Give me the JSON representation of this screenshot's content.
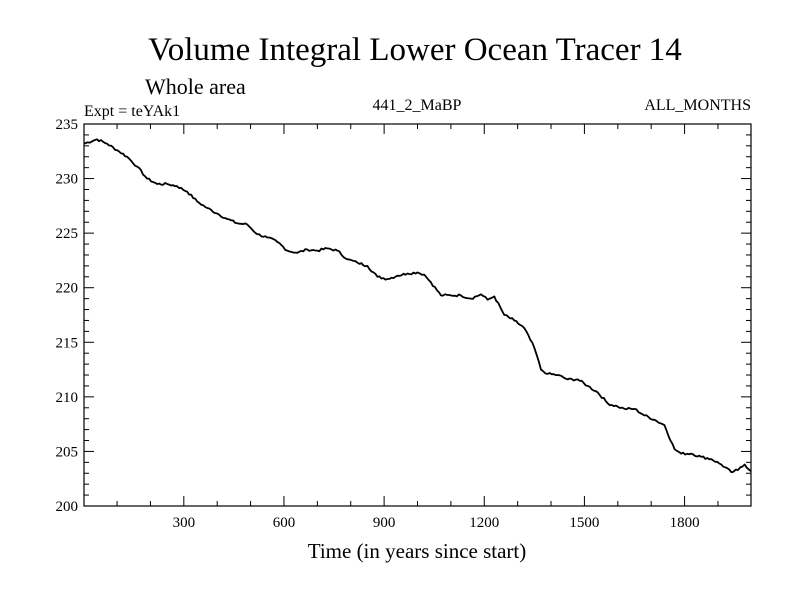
{
  "chart_data": {
    "type": "line",
    "title": "Volume Integral Lower Ocean Tracer 14",
    "subtitle": "Whole area",
    "expt_label": "Expt = teYAk1",
    "center_label": "441_2_MaBP",
    "right_label": "ALL_MONTHS",
    "xlabel": "Time (in years since start)",
    "ylabel": "",
    "xlim": [
      1,
      1999
    ],
    "ylim": [
      200,
      235
    ],
    "x_ticks": [
      300,
      600,
      900,
      1200,
      1500,
      1800
    ],
    "y_ticks": [
      200,
      205,
      210,
      215,
      220,
      225,
      230,
      235
    ],
    "series": [
      {
        "name": "Tracer 14",
        "x": [
          1,
          40,
          70,
          100,
          130,
          160,
          190,
          220,
          250,
          280,
          310,
          340,
          370,
          400,
          430,
          460,
          490,
          520,
          550,
          580,
          610,
          640,
          670,
          700,
          730,
          760,
          790,
          820,
          850,
          880,
          910,
          940,
          970,
          1000,
          1020,
          1040,
          1070,
          1100,
          1130,
          1160,
          1190,
          1210,
          1230,
          1260,
          1290,
          1320,
          1350,
          1370,
          1390,
          1420,
          1450,
          1480,
          1510,
          1540,
          1570,
          1600,
          1620,
          1650,
          1680,
          1710,
          1740,
          1770,
          1790,
          1820,
          1850,
          1880,
          1910,
          1940,
          1960,
          1980,
          1999
        ],
        "y": [
          233.2,
          233.6,
          233.2,
          232.6,
          232.0,
          231.1,
          230.0,
          229.5,
          229.5,
          229.3,
          228.8,
          227.9,
          227.3,
          226.8,
          226.3,
          225.9,
          225.8,
          224.9,
          224.6,
          224.2,
          223.4,
          223.2,
          223.5,
          223.4,
          223.6,
          223.4,
          222.6,
          222.3,
          222.0,
          221.0,
          220.8,
          221.1,
          221.3,
          221.4,
          221.2,
          220.5,
          219.3,
          219.3,
          219.3,
          219.0,
          219.4,
          218.9,
          219.2,
          217.5,
          217.0,
          216.3,
          214.5,
          212.5,
          212.1,
          212.0,
          211.6,
          211.6,
          211.0,
          210.4,
          209.4,
          209.1,
          208.9,
          208.9,
          208.3,
          207.9,
          207.4,
          205.2,
          204.8,
          204.8,
          204.5,
          204.3,
          203.8,
          203.1,
          203.3,
          203.8,
          203.2
        ]
      }
    ]
  }
}
